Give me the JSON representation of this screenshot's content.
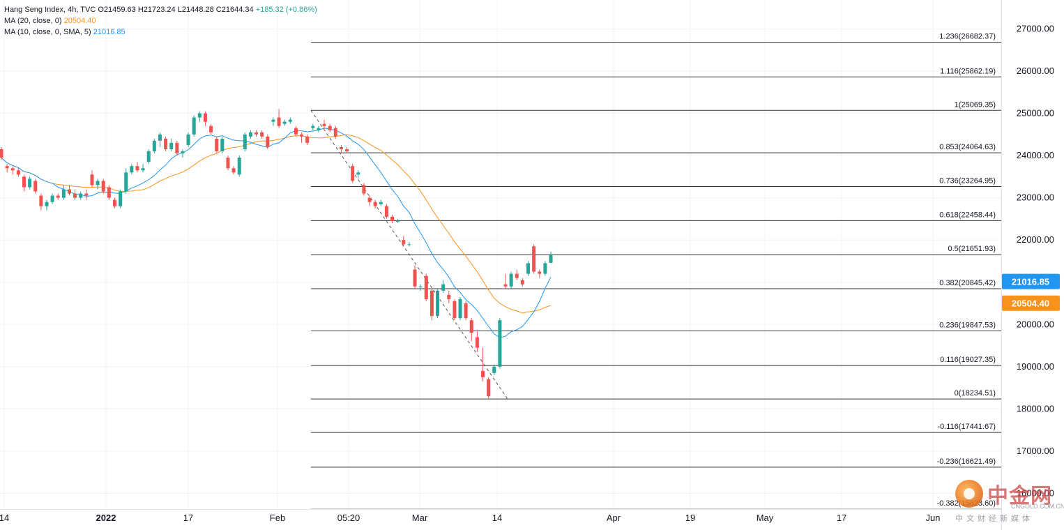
{
  "header": {
    "symbol": "Hang Seng Index, 4h, TVC",
    "open": "O21459.63",
    "high": "H21723.24",
    "low": "L21448.28",
    "close": "C21644.34",
    "change": "+185.32 (+0.86%)",
    "ma20_label": "MA (20, close, 0)",
    "ma20_value": "20504.40",
    "ma10_label": "MA (10, close, 0, SMA, 5)",
    "ma10_value": "21016.85"
  },
  "watermark": {
    "brand_cn": "中金网",
    "brand_en": "CNGOLD.COM.CN",
    "sub_cn": "中文财经新媒体"
  },
  "colors": {
    "up": "#26a69a",
    "down": "#ef5350",
    "ma10": "#2196f3",
    "ma20": "#f7931a",
    "fib_line": "#333333",
    "grid": "#f0f3fa"
  },
  "chart_data": {
    "type": "candlestick",
    "title": "Hang Seng Index, 4h, TVC",
    "ylim": [
      15700,
      27700
    ],
    "y_ticks": [
      "27000.00",
      "26000.00",
      "25000.00",
      "24000.00",
      "23000.00",
      "22000.00",
      "21000.00",
      "20000.00",
      "19000.00",
      "18000.00",
      "17000.00",
      "16000.00"
    ],
    "x_ticks": [
      "14",
      "2022",
      "17",
      "Feb",
      "05:20",
      "Mar",
      "14",
      "Apr",
      "19",
      "May",
      "17",
      "Jun"
    ],
    "price_tags": [
      {
        "label": "21016.85",
        "value": 21016.85,
        "color": "#2196f3"
      },
      {
        "label": "20504.40",
        "value": 20504.4,
        "color": "#f7931a"
      }
    ],
    "fibonacci": [
      {
        "label": "1.236(26682.37)",
        "value": 26682.37
      },
      {
        "label": "1.116(25862.19)",
        "value": 25862.19
      },
      {
        "label": "1(25069.35)",
        "value": 25069.35
      },
      {
        "label": "0.853(24064.63)",
        "value": 24064.63
      },
      {
        "label": "0.736(23264.95)",
        "value": 23264.95
      },
      {
        "label": "0.618(22458.44)",
        "value": 22458.44
      },
      {
        "label": "0.5(21651.93)",
        "value": 21651.93
      },
      {
        "label": "0.382(20845.42)",
        "value": 20845.42
      },
      {
        "label": "0.236(19847.53)",
        "value": 19847.53
      },
      {
        "label": "0.116(19027.35)",
        "value": 19027.35
      },
      {
        "label": "0(18234.51)",
        "value": 18234.51
      },
      {
        "label": "-0.116(17441.67)",
        "value": 17441.67
      },
      {
        "label": "-0.236(16621.49)",
        "value": 16621.49
      },
      {
        "label": "-0.382(15623.60)",
        "value": 15623.6
      }
    ],
    "fib_trend": {
      "from": 25069.35,
      "to": 18234.51
    },
    "candles": [
      [
        24150,
        24200,
        23900,
        23950
      ],
      [
        23750,
        23800,
        23600,
        23700
      ],
      [
        23700,
        23750,
        23550,
        23650
      ],
      [
        23650,
        23700,
        23500,
        23550
      ],
      [
        23500,
        23550,
        23150,
        23250
      ],
      [
        23250,
        23500,
        23200,
        23450
      ],
      [
        23400,
        23450,
        23100,
        23150
      ],
      [
        23050,
        23100,
        22700,
        22800
      ],
      [
        22800,
        22950,
        22700,
        22900
      ],
      [
        22900,
        23100,
        22850,
        23050
      ],
      [
        23050,
        23100,
        22950,
        23000
      ],
      [
        23000,
        23300,
        22950,
        23200
      ],
      [
        23200,
        23300,
        23050,
        23100
      ],
      [
        23100,
        23200,
        22950,
        23000
      ],
      [
        23000,
        23150,
        22950,
        23100
      ],
      [
        23100,
        23200,
        22950,
        23050
      ],
      [
        23550,
        23650,
        23250,
        23300
      ],
      [
        23300,
        23450,
        23200,
        23400
      ],
      [
        23400,
        23450,
        23100,
        23150
      ],
      [
        23250,
        23300,
        22950,
        23000
      ],
      [
        22950,
        23000,
        22750,
        22800
      ],
      [
        22800,
        23200,
        22750,
        23150
      ],
      [
        23150,
        23700,
        23100,
        23600
      ],
      [
        23600,
        23800,
        23550,
        23750
      ],
      [
        23750,
        23850,
        23600,
        23650
      ],
      [
        23650,
        23800,
        23600,
        23700
      ],
      [
        23850,
        24150,
        23800,
        24100
      ],
      [
        24100,
        24400,
        24050,
        24350
      ],
      [
        24350,
        24550,
        24200,
        24500
      ],
      [
        24400,
        24450,
        24100,
        24150
      ],
      [
        24150,
        24400,
        24100,
        24300
      ],
      [
        24300,
        24350,
        24000,
        24050
      ],
      [
        24050,
        24150,
        23950,
        24100
      ],
      [
        24250,
        24550,
        24200,
        24500
      ],
      [
        24500,
        24950,
        24450,
        24900
      ],
      [
        24900,
        25050,
        24800,
        25000
      ],
      [
        25000,
        25050,
        24700,
        24800
      ],
      [
        24700,
        24750,
        24500,
        24550
      ],
      [
        24400,
        24450,
        24050,
        24100
      ],
      [
        24100,
        24450,
        24050,
        24400
      ],
      [
        23950,
        24000,
        23650,
        23700
      ],
      [
        23700,
        23750,
        23550,
        23600
      ],
      [
        23550,
        24000,
        23500,
        23950
      ],
      [
        24150,
        24550,
        24100,
        24500
      ],
      [
        24450,
        24600,
        24400,
        24550
      ],
      [
        24550,
        24600,
        24450,
        24500
      ],
      [
        24550,
        24600,
        24400,
        24450
      ],
      [
        24450,
        24500,
        24150,
        24200
      ],
      [
        24800,
        24900,
        24700,
        24850
      ],
      [
        24900,
        25100,
        24650,
        24700
      ],
      [
        24750,
        24850,
        24700,
        24800
      ],
      [
        24800,
        24900,
        24750,
        24850
      ],
      [
        24650,
        24700,
        24450,
        24500
      ],
      [
        24500,
        24550,
        24300,
        24450
      ],
      [
        24450,
        24500,
        24250,
        24300
      ],
      [
        24650,
        24750,
        24600,
        24700
      ],
      [
        24600,
        24700,
        24550,
        24650
      ],
      [
        24750,
        24850,
        24600,
        24700
      ],
      [
        24700,
        24750,
        24550,
        24600
      ],
      [
        24650,
        24700,
        24400,
        24450
      ],
      [
        24200,
        24250,
        24050,
        24150
      ],
      [
        24150,
        24200,
        24050,
        24100
      ],
      [
        23750,
        23800,
        23350,
        23400
      ],
      [
        23550,
        23650,
        23450,
        23600
      ],
      [
        23300,
        23350,
        23050,
        23100
      ],
      [
        23000,
        23050,
        22800,
        22900
      ],
      [
        22900,
        22950,
        22750,
        22800
      ],
      [
        22850,
        22950,
        22800,
        22900
      ],
      [
        22800,
        22850,
        22500,
        22550
      ],
      [
        22550,
        22600,
        22400,
        22450
      ],
      [
        22450,
        22500,
        22400,
        22450
      ],
      [
        22000,
        22100,
        21850,
        21900
      ],
      [
        21900,
        21950,
        21850,
        21900
      ],
      [
        21300,
        21400,
        20850,
        20900
      ],
      [
        20900,
        20950,
        20800,
        20900
      ],
      [
        21150,
        21200,
        20550,
        20600
      ],
      [
        20800,
        20850,
        20100,
        20200
      ],
      [
        20200,
        20850,
        20150,
        20800
      ],
      [
        20800,
        21050,
        20750,
        20950
      ],
      [
        20700,
        20800,
        20500,
        20600
      ],
      [
        20550,
        20600,
        20100,
        20150
      ],
      [
        20150,
        20650,
        20100,
        20600
      ],
      [
        20500,
        20550,
        20100,
        20150
      ],
      [
        20100,
        20150,
        19600,
        19800
      ],
      [
        19700,
        19850,
        19350,
        19450
      ],
      [
        18900,
        19450,
        18650,
        18750
      ],
      [
        18700,
        18750,
        18250,
        18300
      ],
      [
        18850,
        19050,
        18800,
        19000
      ],
      [
        19000,
        20150,
        18950,
        20100
      ],
      [
        20950,
        21200,
        20850,
        20900
      ],
      [
        20900,
        21250,
        20850,
        21200
      ],
      [
        21200,
        21300,
        21050,
        21100
      ],
      [
        21050,
        21100,
        20900,
        20950
      ],
      [
        21200,
        21500,
        21150,
        21450
      ],
      [
        21850,
        21900,
        21200,
        21250
      ],
      [
        21250,
        21300,
        21100,
        21200
      ],
      [
        21200,
        21500,
        21150,
        21450
      ],
      [
        21459.63,
        21723.24,
        21448.28,
        21644.34
      ]
    ]
  }
}
